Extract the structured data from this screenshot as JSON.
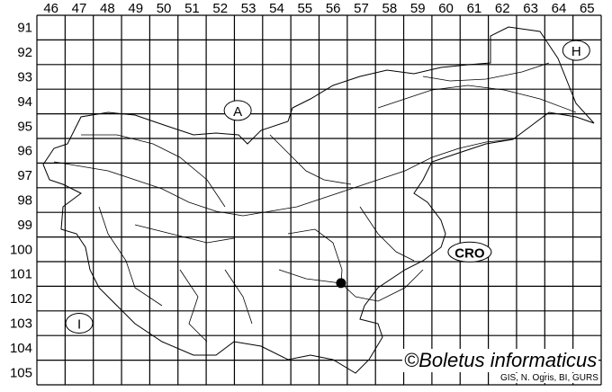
{
  "map": {
    "columns": [
      "46",
      "47",
      "48",
      "49",
      "50",
      "51",
      "52",
      "53",
      "54",
      "55",
      "56",
      "57",
      "58",
      "59",
      "60",
      "61",
      "62",
      "63",
      "64",
      "65"
    ],
    "rows": [
      "91",
      "92",
      "93",
      "94",
      "95",
      "96",
      "97",
      "98",
      "99",
      "100",
      "101",
      "102",
      "103",
      "104",
      "105"
    ],
    "country_labels": [
      {
        "text": "A",
        "column": "53",
        "row": "94"
      },
      {
        "text": "H",
        "column": "65",
        "row": "92"
      },
      {
        "text": "CRO",
        "column": "61",
        "row": "100"
      },
      {
        "text": "I",
        "column": "47",
        "row": "103"
      }
    ],
    "records": [
      {
        "column": "56",
        "row": "101"
      }
    ],
    "copyright": "©Boletus informaticus",
    "credit": "GIS, N. Ogris, BI, GURS",
    "colors": {
      "lines": "#000000",
      "background": "#ffffff"
    }
  }
}
